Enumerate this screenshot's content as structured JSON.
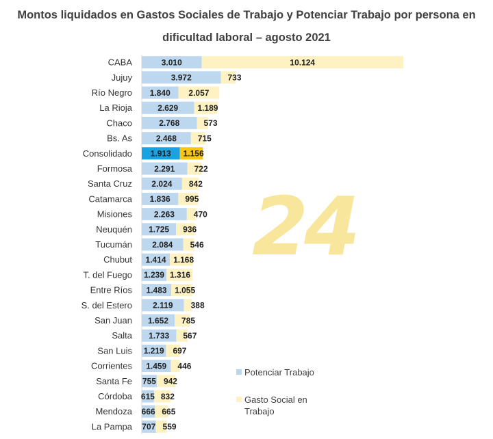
{
  "chart_data": {
    "type": "bar",
    "orientation": "horizontal",
    "stacked": true,
    "title": "Montos liquidados en Gastos Sociales de Trabajo y Potenciar Trabajo por persona en dificultad laboral – agosto 2021",
    "categories": [
      "CABA",
      "Jujuy",
      "Río Negro",
      "La Rioja",
      "Chaco",
      "Bs. As",
      "Consolidado",
      "Formosa",
      "Santa Cruz",
      "Catamarca",
      "Misiones",
      "Neuquén",
      "Tucumán",
      "Chubut",
      "T. del Fuego",
      "Entre Ríos",
      "S. del Estero",
      "San Juan",
      "Salta",
      "San Luis",
      "Corrientes",
      "Santa Fe",
      "Córdoba",
      "Mendoza",
      "La Pampa"
    ],
    "series": [
      {
        "name": "Potenciar Trabajo",
        "values": [
          3010,
          3972,
          1840,
          2629,
          2768,
          2468,
          1913,
          2291,
          2024,
          1836,
          2263,
          1725,
          2084,
          1414,
          1239,
          1483,
          2119,
          1652,
          1733,
          1219,
          1459,
          755,
          615,
          666,
          707
        ],
        "labels": [
          "3.010",
          "3.972",
          "1.840",
          "2.629",
          "2.768",
          "2.468",
          "1.913",
          "2.291",
          "2.024",
          "1.836",
          "2.263",
          "1.725",
          "2.084",
          "1.414",
          "1.239",
          "1.483",
          "2.119",
          "1.652",
          "1.733",
          "1.219",
          "1.459",
          "755",
          "615",
          "666",
          "707"
        ]
      },
      {
        "name": "Gasto Social en Trabajo",
        "values": [
          10124,
          733,
          2057,
          1189,
          573,
          715,
          1156,
          722,
          842,
          995,
          470,
          936,
          546,
          1168,
          1316,
          1055,
          388,
          785,
          567,
          697,
          446,
          942,
          832,
          665,
          559
        ],
        "labels": [
          "10.124",
          "733",
          "2.057",
          "1.189",
          "573",
          "715",
          "1.156",
          "722",
          "842",
          "995",
          "470",
          "936",
          "546",
          "1.168",
          "1.316",
          "1.055",
          "388",
          "785",
          "567",
          "697",
          "446",
          "942",
          "832",
          "665",
          "559"
        ]
      }
    ],
    "highlight_category": "Consolidado",
    "legend_position": "bottom-right",
    "grid": false,
    "colors": {
      "potenciar": "#bdd7ee",
      "gasto": "#fff2c2",
      "potenciar_highlight": "#1aa3e0",
      "gasto_highlight": "#f5c518"
    }
  },
  "watermark": "24"
}
